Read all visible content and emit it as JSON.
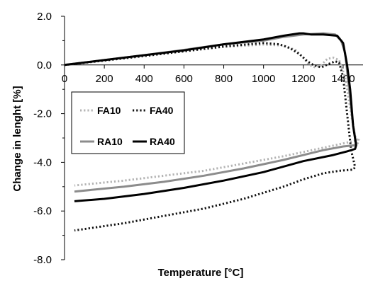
{
  "chart_data": {
    "type": "line",
    "title": "",
    "xlabel": "Temperature [°C]",
    "ylabel": "Change in lenght [%]",
    "xlim": [
      0,
      1500
    ],
    "ylim": [
      -8,
      2
    ],
    "x_ticks": [
      {
        "value": 0,
        "label": "0"
      },
      {
        "value": 200,
        "label": "200"
      },
      {
        "value": 400,
        "label": "400"
      },
      {
        "value": 600,
        "label": "600"
      },
      {
        "value": 800,
        "label": "800"
      },
      {
        "value": 1000,
        "label": "1000"
      },
      {
        "value": 1200,
        "label": "1200"
      },
      {
        "value": 1400,
        "label": "1400"
      }
    ],
    "y_ticks": [
      {
        "value": 2,
        "label": "2.0"
      },
      {
        "value": 0,
        "label": "0.0"
      },
      {
        "value": -2,
        "label": "-2.0"
      },
      {
        "value": -4,
        "label": "-4.0"
      },
      {
        "value": -6,
        "label": "-6.0"
      },
      {
        "value": -8,
        "label": "-8.0"
      }
    ],
    "grid": false,
    "legend_position": "left-middle",
    "series": [
      {
        "name": "FA10",
        "color": "#b3b3b3",
        "dash": "dotted",
        "points": [
          [
            0,
            0
          ],
          [
            200,
            0.18
          ],
          [
            400,
            0.36
          ],
          [
            600,
            0.56
          ],
          [
            800,
            0.74
          ],
          [
            1000,
            0.84
          ],
          [
            1100,
            0.8
          ],
          [
            1160,
            0.62
          ],
          [
            1200,
            0.3
          ],
          [
            1230,
            0.0
          ],
          [
            1260,
            -0.1
          ],
          [
            1290,
            0.0
          ],
          [
            1320,
            0.25
          ],
          [
            1350,
            0.3
          ],
          [
            1380,
            0.2
          ],
          [
            1410,
            -0.5
          ],
          [
            1430,
            -1.5
          ],
          [
            1450,
            -2.5
          ],
          [
            1470,
            -3.3
          ],
          [
            1480,
            -3.0
          ],
          [
            1470,
            -3.1
          ],
          [
            1300,
            -3.4
          ],
          [
            1100,
            -3.75
          ],
          [
            900,
            -4.05
          ],
          [
            700,
            -4.35
          ],
          [
            500,
            -4.55
          ],
          [
            300,
            -4.75
          ],
          [
            50,
            -4.95
          ]
        ]
      },
      {
        "name": "FA40",
        "color": "#111111",
        "dash": "dotted",
        "points": [
          [
            0,
            0
          ],
          [
            200,
            0.18
          ],
          [
            400,
            0.37
          ],
          [
            600,
            0.56
          ],
          [
            800,
            0.76
          ],
          [
            1000,
            0.9
          ],
          [
            1080,
            0.85
          ],
          [
            1130,
            0.7
          ],
          [
            1180,
            0.45
          ],
          [
            1220,
            0.15
          ],
          [
            1250,
            0.0
          ],
          [
            1290,
            -0.1
          ],
          [
            1330,
            0.05
          ],
          [
            1360,
            0.15
          ],
          [
            1380,
            0.1
          ],
          [
            1400,
            -0.5
          ],
          [
            1420,
            -2.0
          ],
          [
            1440,
            -3.5
          ],
          [
            1460,
            -4.2
          ],
          [
            1450,
            -4.3
          ],
          [
            1380,
            -4.35
          ],
          [
            1300,
            -4.45
          ],
          [
            1200,
            -4.7
          ],
          [
            1100,
            -5.0
          ],
          [
            900,
            -5.5
          ],
          [
            700,
            -5.9
          ],
          [
            500,
            -6.2
          ],
          [
            300,
            -6.5
          ],
          [
            50,
            -6.8
          ]
        ]
      },
      {
        "name": "RA10",
        "color": "#8c8c8c",
        "dash": "solid",
        "points": [
          [
            0,
            0
          ],
          [
            200,
            0.2
          ],
          [
            400,
            0.4
          ],
          [
            600,
            0.62
          ],
          [
            800,
            0.85
          ],
          [
            1000,
            1.0
          ],
          [
            1100,
            1.15
          ],
          [
            1200,
            1.25
          ],
          [
            1300,
            1.3
          ],
          [
            1360,
            1.25
          ],
          [
            1390,
            1.0
          ],
          [
            1410,
            0.5
          ],
          [
            1430,
            -1.0
          ],
          [
            1450,
            -2.5
          ],
          [
            1465,
            -3.2
          ],
          [
            1460,
            -3.3
          ],
          [
            1400,
            -3.35
          ],
          [
            1300,
            -3.5
          ],
          [
            1100,
            -3.9
          ],
          [
            900,
            -4.25
          ],
          [
            700,
            -4.55
          ],
          [
            500,
            -4.8
          ],
          [
            300,
            -5.0
          ],
          [
            50,
            -5.2
          ]
        ]
      },
      {
        "name": "RA40",
        "color": "#000000",
        "dash": "solid",
        "points": [
          [
            0,
            0
          ],
          [
            200,
            0.2
          ],
          [
            400,
            0.4
          ],
          [
            600,
            0.6
          ],
          [
            800,
            0.85
          ],
          [
            1000,
            1.05
          ],
          [
            1100,
            1.2
          ],
          [
            1180,
            1.3
          ],
          [
            1200,
            1.3
          ],
          [
            1240,
            1.25
          ],
          [
            1300,
            1.25
          ],
          [
            1370,
            1.2
          ],
          [
            1400,
            0.9
          ],
          [
            1420,
            0.0
          ],
          [
            1435,
            -1.0
          ],
          [
            1450,
            -2.5
          ],
          [
            1465,
            -3.3
          ],
          [
            1460,
            -3.45
          ],
          [
            1420,
            -3.55
          ],
          [
            1350,
            -3.7
          ],
          [
            1200,
            -3.95
          ],
          [
            1000,
            -4.4
          ],
          [
            800,
            -4.75
          ],
          [
            600,
            -5.05
          ],
          [
            400,
            -5.3
          ],
          [
            200,
            -5.5
          ],
          [
            50,
            -5.6
          ]
        ]
      }
    ]
  }
}
